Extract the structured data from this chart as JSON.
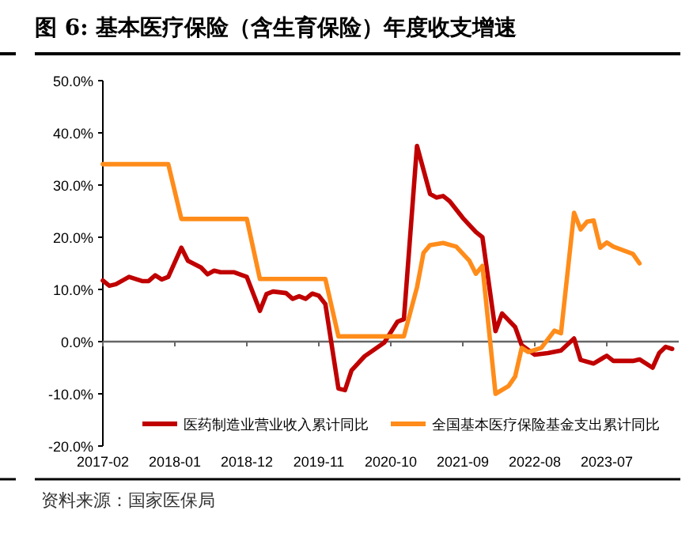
{
  "chart_data": {
    "type": "line",
    "title": "图 6: 基本医疗保险（含生育保险）年度收支增速",
    "annotations": [
      "资料来源：国家医保局"
    ],
    "xlim": [
      "2017-02",
      "2024-06"
    ],
    "xticks": [
      {
        "value": "2017-02",
        "label": "2017-02"
      },
      {
        "value": "2018-01",
        "label": "2018-01"
      },
      {
        "value": "2018-12",
        "label": "2018-12"
      },
      {
        "value": "2019-11",
        "label": "2019-11"
      },
      {
        "value": "2020-10",
        "label": "2020-10"
      },
      {
        "value": "2021-09",
        "label": "2021-09"
      },
      {
        "value": "2022-08",
        "label": "2022-08"
      },
      {
        "value": "2023-07",
        "label": "2023-07"
      }
    ],
    "ylim": [
      -20,
      50
    ],
    "yticks": [
      {
        "value": -20,
        "label": "-20.0%"
      },
      {
        "value": -10,
        "label": "-10.0%"
      },
      {
        "value": 0,
        "label": "0.0%"
      },
      {
        "value": 10,
        "label": "10.0%"
      },
      {
        "value": 20,
        "label": "20.0%"
      },
      {
        "value": 30,
        "label": "30.0%"
      },
      {
        "value": 40,
        "label": "40.0%"
      },
      {
        "value": 50,
        "label": "50.0%"
      }
    ],
    "legend": "bottom",
    "line_style": "solid",
    "series": [
      {
        "name": "医药制造业营业收入累计同比",
        "color": "#c00000",
        "x": [
          "2017-02",
          "2017-03",
          "2017-04",
          "2017-06",
          "2017-08",
          "2017-09",
          "2017-10",
          "2017-11",
          "2017-12",
          "2018-02",
          "2018-03",
          "2018-05",
          "2018-06",
          "2018-07",
          "2018-08",
          "2018-10",
          "2018-12",
          "2019-02",
          "2019-03",
          "2019-04",
          "2019-06",
          "2019-07",
          "2019-08",
          "2019-09",
          "2019-10",
          "2019-11",
          "2019-12",
          "2020-02",
          "2020-03",
          "2020-04",
          "2020-06",
          "2020-09",
          "2020-11",
          "2020-12",
          "2021-02",
          "2021-04",
          "2021-05",
          "2021-06",
          "2021-07",
          "2021-09",
          "2021-11",
          "2021-12",
          "2022-02",
          "2022-03",
          "2022-05",
          "2022-06",
          "2022-08",
          "2022-10",
          "2022-12",
          "2023-02",
          "2023-03",
          "2023-05",
          "2023-07",
          "2023-08",
          "2023-11",
          "2023-12",
          "2024-02",
          "2024-03",
          "2024-04",
          "2024-05"
        ],
        "values": [
          11.7,
          10.7,
          11,
          12.4,
          11.6,
          11.6,
          12.7,
          11.9,
          12.4,
          18,
          15.5,
          14.2,
          12.9,
          13.6,
          13.3,
          13.3,
          12.4,
          5.9,
          9.1,
          9.6,
          9.3,
          8.2,
          8.7,
          8.2,
          9.2,
          8.8,
          7.2,
          -9,
          -9.3,
          -5.5,
          -2.8,
          -0.2,
          3.8,
          4.3,
          37.5,
          28.3,
          27.6,
          27.9,
          26.9,
          23.7,
          21,
          20,
          2,
          5.4,
          2.8,
          -0.7,
          -2.5,
          -2.2,
          -1.7,
          0.6,
          -3.5,
          -4.2,
          -2.7,
          -3.7,
          -3.7,
          -3.4,
          -5,
          -2.2,
          -1,
          -1.4
        ]
      },
      {
        "name": "全国基本医疗保险基金支出累计同比",
        "color": "#ff8c1a",
        "x": [
          "2017-02",
          "2017-12",
          "2018-02",
          "2018-12",
          "2019-02",
          "2019-12",
          "2020-02",
          "2020-12",
          "2021-02",
          "2021-03",
          "2021-04",
          "2021-06",
          "2021-08",
          "2021-10",
          "2021-11",
          "2021-12",
          "2022-02",
          "2022-04",
          "2022-05",
          "2022-06",
          "2022-07",
          "2022-09",
          "2022-11",
          "2022-12",
          "2023-02",
          "2023-03",
          "2023-04",
          "2023-05",
          "2023-06",
          "2023-07",
          "2023-08",
          "2023-11",
          "2023-12"
        ],
        "values": [
          34,
          34,
          23.5,
          23.5,
          12,
          12,
          1,
          1,
          10.4,
          17,
          18.5,
          18.9,
          18.2,
          15.5,
          13,
          14.5,
          -10,
          -8.5,
          -6.7,
          -1.2,
          -2,
          -1.2,
          2.1,
          1.6,
          24.7,
          21.5,
          23,
          23.2,
          18,
          19,
          18.2,
          16.8,
          15
        ]
      }
    ]
  }
}
